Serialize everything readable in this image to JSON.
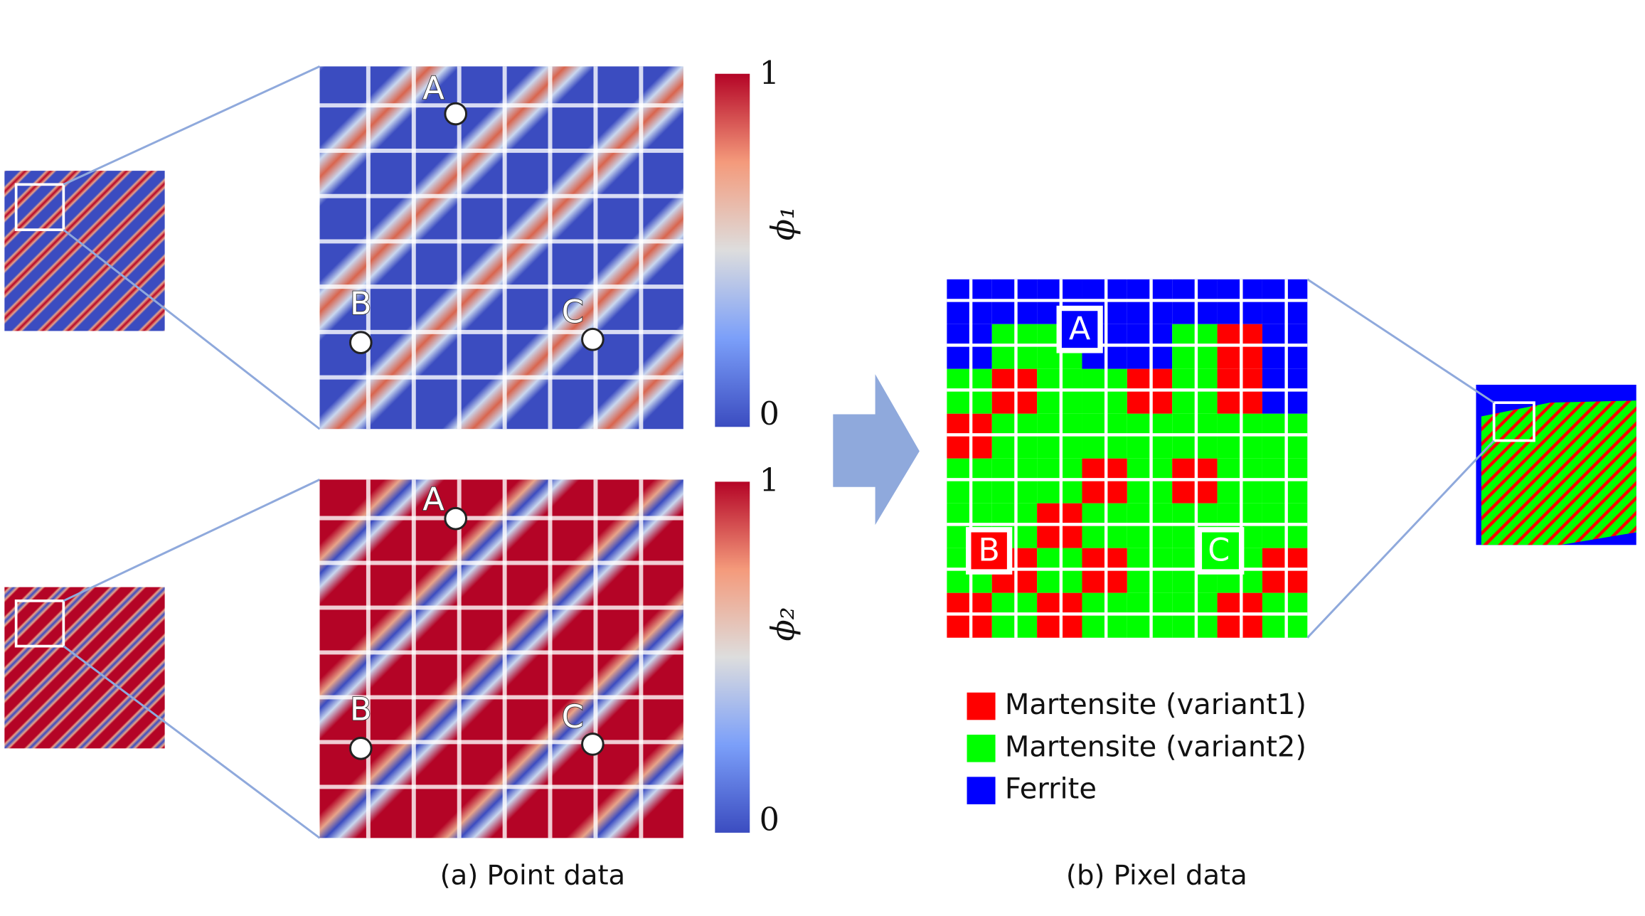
{
  "panel_a": {
    "caption": "(a) Point data",
    "maps": [
      {
        "colorbar": {
          "label": "ϕ₁",
          "max": "1",
          "min": "0"
        },
        "points": [
          "A",
          "B",
          "C"
        ]
      },
      {
        "colorbar": {
          "label": "ϕ₂",
          "max": "1",
          "min": "0"
        },
        "points": [
          "A",
          "B",
          "C"
        ]
      }
    ]
  },
  "panel_b": {
    "caption": "(b) Pixel data",
    "points": [
      "A",
      "B",
      "C"
    ],
    "legend": [
      "Martensite (variant1)",
      "Martensite (variant2)",
      "Ferrite"
    ]
  }
}
